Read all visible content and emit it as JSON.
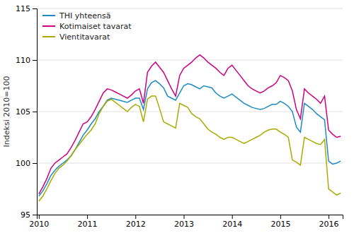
{
  "chart_data": {
    "type": "line",
    "ylabel": "Indeksi 2010=100",
    "categories": [
      "2010",
      null,
      null,
      null,
      null,
      null,
      null,
      null,
      null,
      null,
      null,
      null,
      "2011",
      null,
      null,
      null,
      null,
      null,
      null,
      null,
      null,
      null,
      null,
      null,
      "2012",
      null,
      null,
      null,
      null,
      null,
      null,
      null,
      null,
      null,
      null,
      null,
      "2013",
      null,
      null,
      null,
      null,
      null,
      null,
      null,
      null,
      null,
      null,
      null,
      "2014",
      null,
      null,
      null,
      null,
      null,
      null,
      null,
      null,
      null,
      null,
      null,
      "2015",
      null,
      null,
      null,
      null,
      null,
      null,
      null,
      null,
      null,
      null,
      null,
      "2016",
      null,
      null,
      null
    ],
    "ylim": [
      95,
      115
    ],
    "yticks": [
      95,
      100,
      105,
      110,
      115
    ],
    "grid": true,
    "legend": "upper-left",
    "series": [
      {
        "name": "THI yhteensä",
        "color": "#1E8BC3",
        "values": [
          96.8,
          97.3,
          98.0,
          98.8,
          99.3,
          99.7,
          100.0,
          100.3,
          100.7,
          101.3,
          102.0,
          102.7,
          103.2,
          103.8,
          104.3,
          105.0,
          105.5,
          106.1,
          106.3,
          106.2,
          106.1,
          106.0,
          105.9,
          106.1,
          106.3,
          106.3,
          105.2,
          107.2,
          107.8,
          108.0,
          107.7,
          107.3,
          106.5,
          106.3,
          106.1,
          106.8,
          107.5,
          107.7,
          107.6,
          107.4,
          107.2,
          107.5,
          107.4,
          107.3,
          106.8,
          106.5,
          106.3,
          106.5,
          106.7,
          106.4,
          106.1,
          105.8,
          105.6,
          105.4,
          105.3,
          105.2,
          105.3,
          105.5,
          105.7,
          105.7,
          106.0,
          105.8,
          105.5,
          105.0,
          103.5,
          103.0,
          105.8,
          105.5,
          105.2,
          104.8,
          104.5,
          104.2,
          100.2,
          99.9,
          100.0,
          100.2
        ]
      },
      {
        "name": "Kotimaiset tavarat",
        "color": "#CC0080",
        "values": [
          97.0,
          97.7,
          98.5,
          99.5,
          100.0,
          100.3,
          100.6,
          100.9,
          101.5,
          102.2,
          103.0,
          103.8,
          104.0,
          104.5,
          105.2,
          106.0,
          106.8,
          107.2,
          107.1,
          106.9,
          106.7,
          106.5,
          106.3,
          106.6,
          107.0,
          107.2,
          105.8,
          108.8,
          109.4,
          109.8,
          109.3,
          108.8,
          108.0,
          107.2,
          106.5,
          108.5,
          109.2,
          109.5,
          109.8,
          110.2,
          110.5,
          110.2,
          109.8,
          109.5,
          109.2,
          108.8,
          108.5,
          109.2,
          109.5,
          109.0,
          108.5,
          108.0,
          107.5,
          107.2,
          107.0,
          106.8,
          107.0,
          107.3,
          107.5,
          107.8,
          108.5,
          108.3,
          108.0,
          107.0,
          105.2,
          104.3,
          107.2,
          106.8,
          106.5,
          106.2,
          105.8,
          106.5,
          103.2,
          102.8,
          102.5,
          102.6
        ]
      },
      {
        "name": "Vientitavarat",
        "color": "#AAAA00",
        "values": [
          96.3,
          96.8,
          97.5,
          98.3,
          99.0,
          99.5,
          99.8,
          100.2,
          100.7,
          101.3,
          101.8,
          102.3,
          102.8,
          103.2,
          103.8,
          104.8,
          105.5,
          106.0,
          106.2,
          105.9,
          105.6,
          105.3,
          105.0,
          105.4,
          105.7,
          105.5,
          104.0,
          106.2,
          106.5,
          106.5,
          105.3,
          104.0,
          103.8,
          103.6,
          103.4,
          105.8,
          105.6,
          105.4,
          104.8,
          104.5,
          104.3,
          103.8,
          103.3,
          103.0,
          102.8,
          102.5,
          102.3,
          102.5,
          102.5,
          102.3,
          102.1,
          101.9,
          102.1,
          102.3,
          102.5,
          102.7,
          103.0,
          103.2,
          103.3,
          103.3,
          103.0,
          102.8,
          102.5,
          100.3,
          100.1,
          99.8,
          102.5,
          102.3,
          102.1,
          101.9,
          101.8,
          102.3,
          97.5,
          97.2,
          96.9,
          97.1
        ]
      }
    ]
  }
}
